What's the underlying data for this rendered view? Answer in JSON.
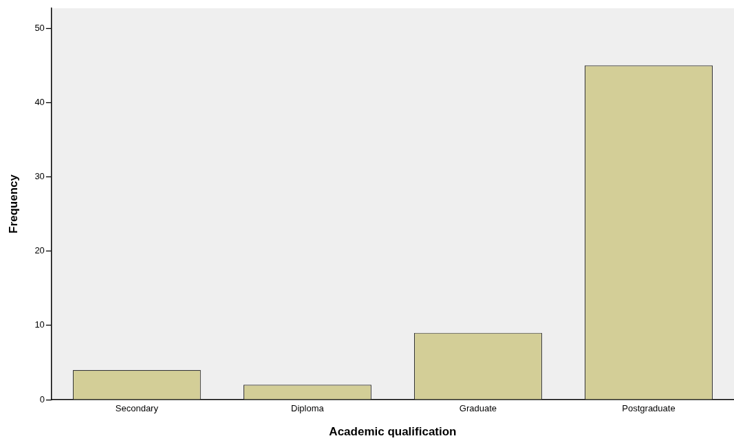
{
  "chart_data": {
    "type": "bar",
    "categories": [
      "Secondary",
      "Diploma",
      "Graduate",
      "Postgraduate"
    ],
    "values": [
      4,
      2,
      9,
      45
    ],
    "color": "#d3ce97",
    "xlabel": "Academic qualification",
    "ylabel": "Frequency",
    "ylim": [
      0,
      52.7
    ],
    "yticks": [
      0,
      10,
      20,
      30,
      40,
      50
    ],
    "grid": false,
    "legend": false
  }
}
